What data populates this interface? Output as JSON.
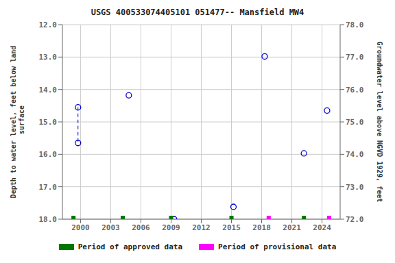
{
  "chart_data": {
    "type": "scatter",
    "title": "USGS 400533074405101 051477-- Mansfield MW4",
    "ylabel": "Depth to water level, feet below land\n surface",
    "y2label": "Groundwater level above NGVD 1929, feet",
    "xlim": [
      1998.2,
      2025.8
    ],
    "xticks": [
      2000,
      2003,
      2006,
      2009,
      2012,
      2015,
      2018,
      2021,
      2024
    ],
    "ylim": [
      18.0,
      12.0
    ],
    "yticks": [
      {
        "value": 12,
        "label": "12.0"
      },
      {
        "value": 13,
        "label": "13.0"
      },
      {
        "value": 14,
        "label": "14.0"
      },
      {
        "value": 15,
        "label": "15.0"
      },
      {
        "value": 16,
        "label": "16.0"
      },
      {
        "value": 17,
        "label": "17.0"
      },
      {
        "value": 18,
        "label": "18.0"
      }
    ],
    "y2lim": [
      72.0,
      78.0
    ],
    "y2ticks": [
      {
        "value": 72,
        "label": "72.0"
      },
      {
        "value": 73,
        "label": "73.0"
      },
      {
        "value": 74,
        "label": "74.0"
      },
      {
        "value": 75,
        "label": "75.0"
      },
      {
        "value": 76,
        "label": "76.0"
      },
      {
        "value": 77,
        "label": "77.0"
      },
      {
        "value": 78,
        "label": "78.0"
      }
    ],
    "grid": true,
    "legend": "bottom",
    "series": [
      {
        "type": "scatter",
        "color": "#0000cc",
        "marker": "circle",
        "x": [
          1999.75,
          1999.75,
          2004.8,
          2009.3,
          2015.2,
          2018.3,
          2022.2,
          2024.5
        ],
        "values": [
          14.55,
          15.65,
          14.18,
          18.0,
          17.62,
          12.98,
          15.97,
          14.65
        ]
      },
      {
        "type": "line",
        "color": "#0000cc",
        "line_style": "dashed",
        "x": [
          1999.75,
          1999.75
        ],
        "values": [
          14.55,
          15.65
        ]
      },
      {
        "name": "Period of approved data",
        "type": "bar",
        "color": "#007700",
        "x": [
          1999.3,
          2004.2,
          2009.0,
          2015.0,
          2022.2
        ]
      },
      {
        "name": "Period of provisional data",
        "type": "bar",
        "color": "#ff00ff",
        "x": [
          2018.7,
          2024.7
        ]
      }
    ]
  }
}
